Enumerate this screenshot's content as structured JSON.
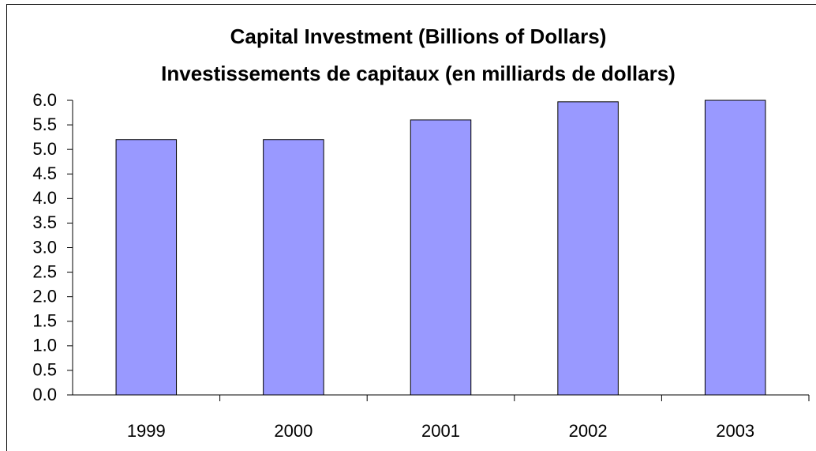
{
  "chart_data": {
    "type": "bar",
    "title": "Capital Investment (Billions of Dollars)",
    "subtitle": "Investissements de capitaux (en milliards de dollars)",
    "categories": [
      "1999",
      "2000",
      "2001",
      "2002",
      "2003"
    ],
    "values": [
      5.2,
      5.2,
      5.6,
      5.97,
      6.0
    ],
    "color": "#9999ff",
    "ylim": [
      0,
      6
    ],
    "yticks": [
      {
        "value": 0,
        "label": "0.0"
      },
      0.5,
      {
        "value": 1,
        "label": "1.0"
      },
      1.5,
      {
        "value": 2,
        "label": "2.0"
      },
      2.5,
      {
        "value": 3,
        "label": "3.0"
      },
      3.5,
      {
        "value": 4,
        "label": "4.0"
      },
      4.5,
      {
        "value": 5,
        "label": "5.0"
      },
      5.5,
      {
        "value": 6,
        "label": "6.0"
      }
    ],
    "grid": false
  }
}
